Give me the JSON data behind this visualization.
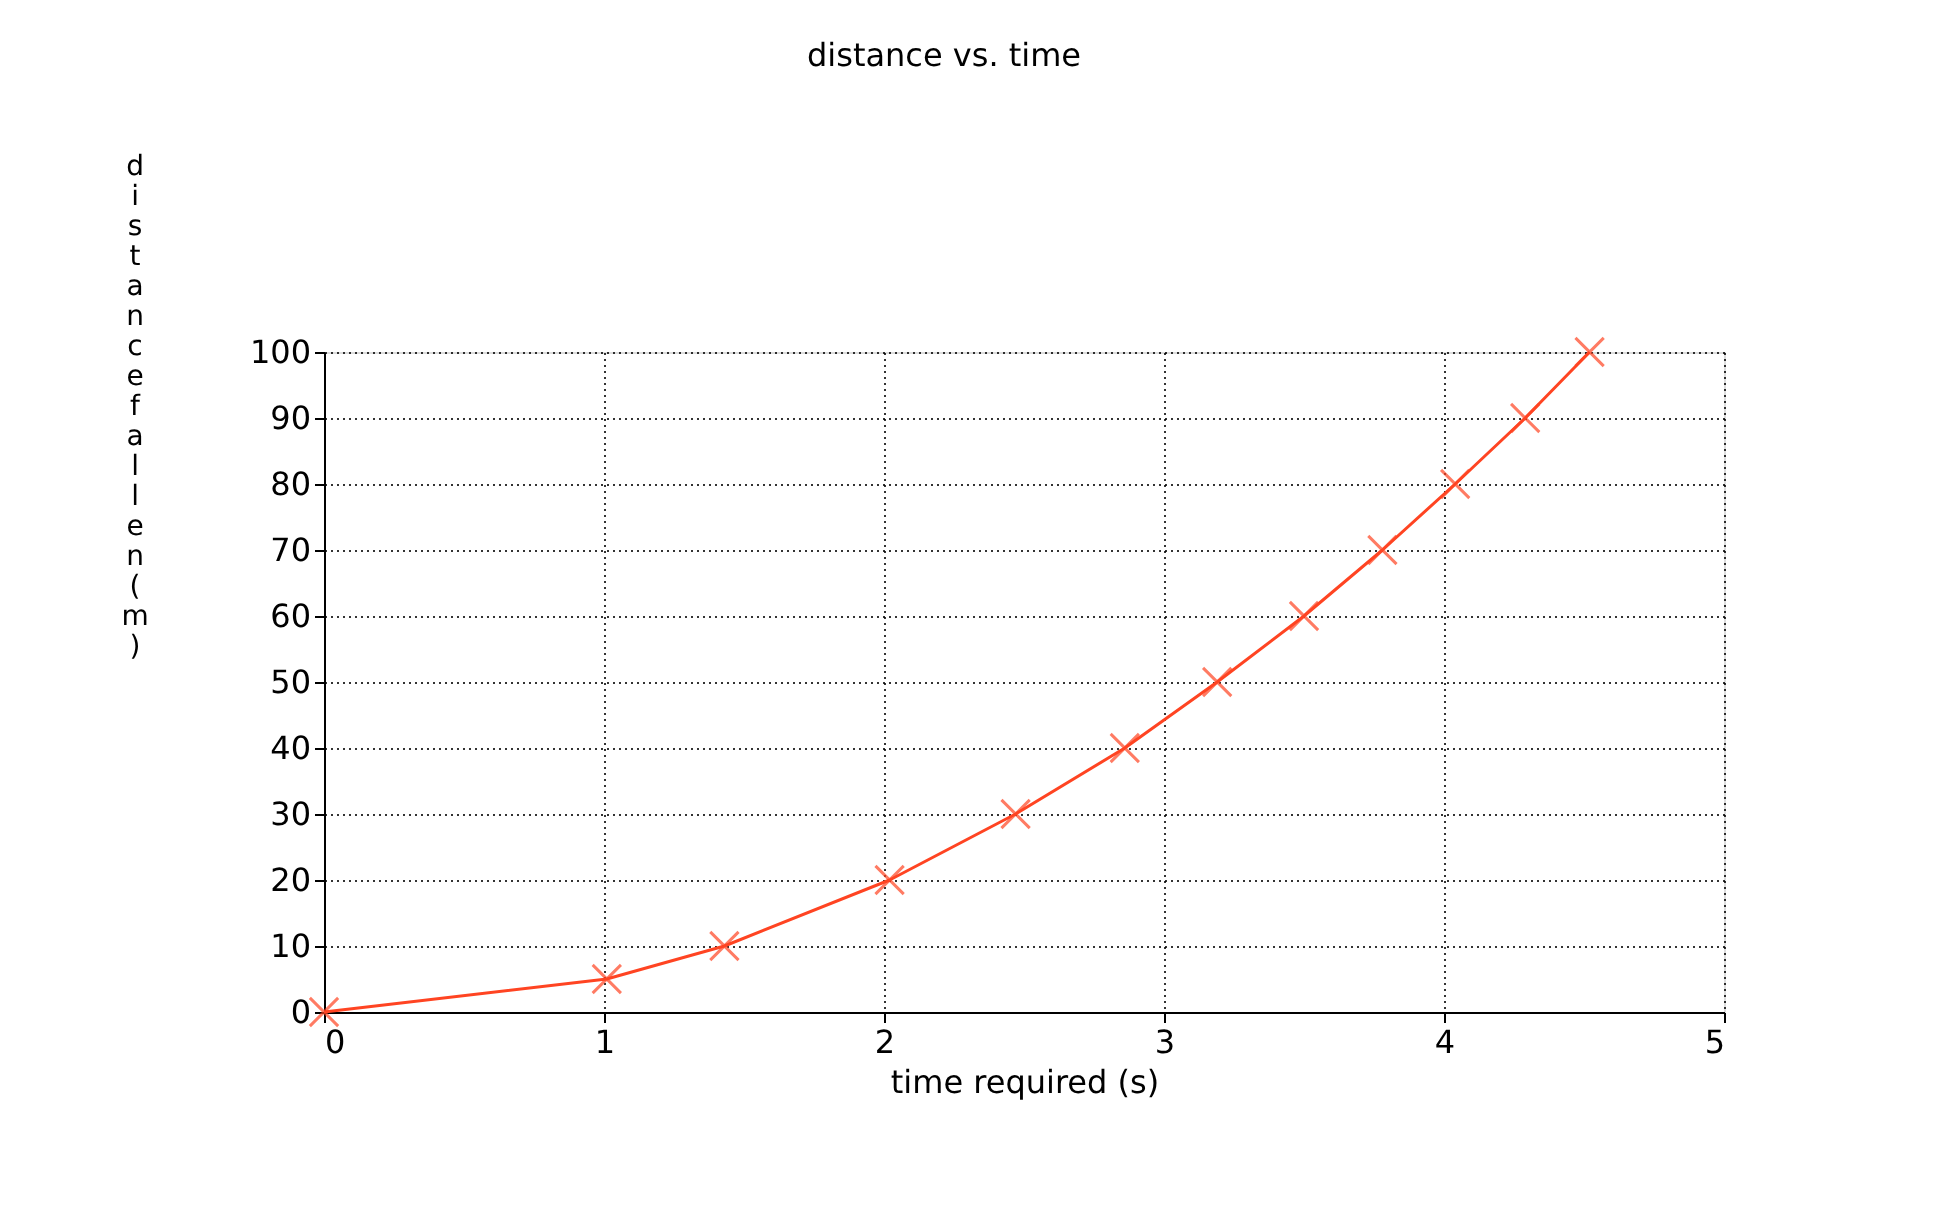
{
  "chart_data": {
    "type": "line",
    "title": "distance vs. time",
    "xlabel": "time required (s)",
    "ylabel": "distance fallen (m)",
    "x": [
      0,
      1.01,
      1.43,
      2.02,
      2.47,
      2.86,
      3.19,
      3.5,
      3.78,
      4.04,
      4.29,
      4.52
    ],
    "series": [
      {
        "color": "#ff4422",
        "values": [
          0,
          5,
          10,
          20,
          30,
          40,
          50,
          60,
          70,
          80,
          90,
          100
        ]
      }
    ],
    "xlim": [
      0,
      5
    ],
    "xticks": [
      0,
      1,
      2,
      3,
      4,
      5
    ],
    "ylim": [
      0,
      100
    ],
    "yticks": [
      0,
      10,
      20,
      30,
      40,
      50,
      60,
      70,
      80,
      90,
      100
    ],
    "grid": true,
    "marker": "cross",
    "line_style": "solid",
    "legend": false
  }
}
